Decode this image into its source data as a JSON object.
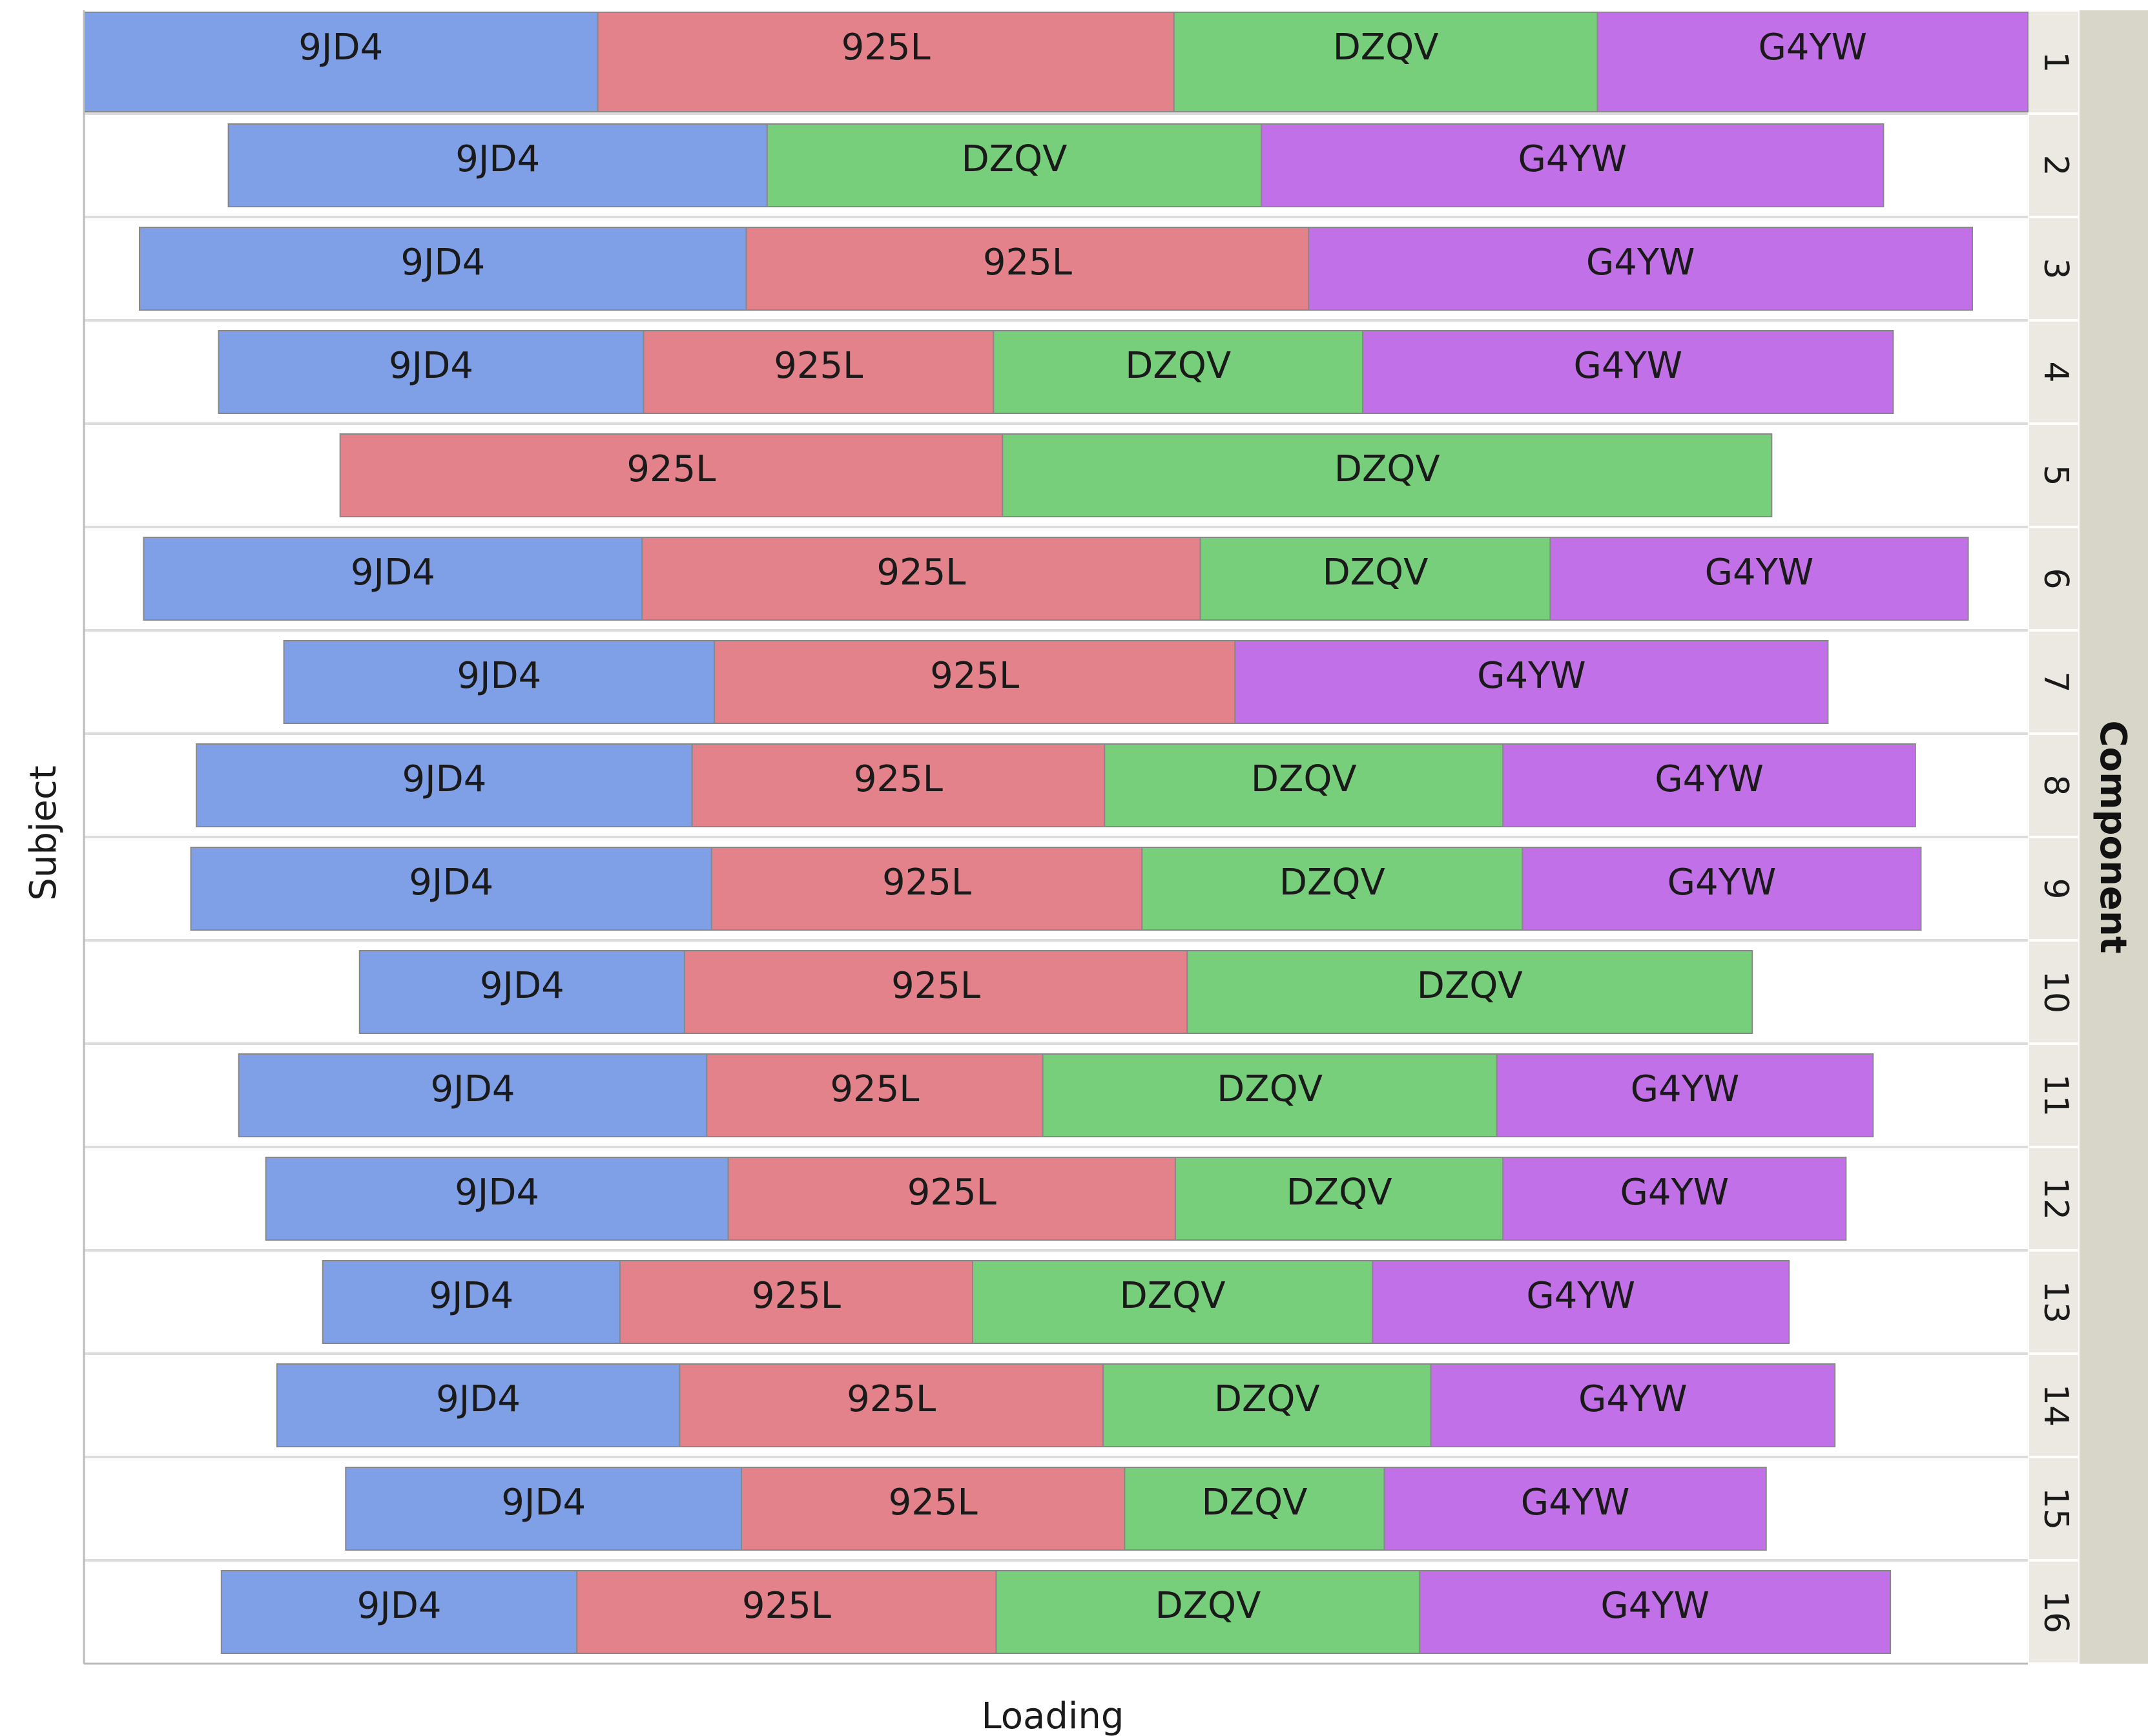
{
  "chart_data": {
    "type": "bar",
    "orientation": "horizontal",
    "stacked": true,
    "centered": true,
    "xlabel": "Loading",
    "ylabel": "Subject",
    "facet_label": "Component",
    "legend": "none",
    "grid": false,
    "colors": {
      "9JD4": "#7f9fe6",
      "925L": "#e3828a",
      "DZQV": "#77cf7b",
      "G4YW": "#c270e8"
    },
    "subjects": [
      {
        "id": "1",
        "segments": [
          {
            "name": "9JD4",
            "value": 370
          },
          {
            "name": "925L",
            "value": 415
          },
          {
            "name": "DZQV",
            "value": 305
          },
          {
            "name": "G4YW",
            "value": 310
          }
        ]
      },
      {
        "id": "2",
        "segments": [
          {
            "name": "9JD4",
            "value": 388
          },
          {
            "name": "DZQV",
            "value": 356
          },
          {
            "name": "G4YW",
            "value": 448
          }
        ]
      },
      {
        "id": "3",
        "segments": [
          {
            "name": "9JD4",
            "value": 437
          },
          {
            "name": "925L",
            "value": 405
          },
          {
            "name": "G4YW",
            "value": 478
          }
        ]
      },
      {
        "id": "4",
        "segments": [
          {
            "name": "9JD4",
            "value": 306
          },
          {
            "name": "925L",
            "value": 252
          },
          {
            "name": "DZQV",
            "value": 266
          },
          {
            "name": "G4YW",
            "value": 382
          }
        ]
      },
      {
        "id": "5",
        "segments": [
          {
            "name": "925L",
            "value": 477
          },
          {
            "name": "DZQV",
            "value": 554
          }
        ]
      },
      {
        "id": "6",
        "segments": [
          {
            "name": "9JD4",
            "value": 359
          },
          {
            "name": "925L",
            "value": 402
          },
          {
            "name": "DZQV",
            "value": 252
          },
          {
            "name": "G4YW",
            "value": 301
          }
        ]
      },
      {
        "id": "7",
        "segments": [
          {
            "name": "9JD4",
            "value": 310
          },
          {
            "name": "925L",
            "value": 375
          },
          {
            "name": "G4YW",
            "value": 427
          }
        ]
      },
      {
        "id": "8",
        "segments": [
          {
            "name": "9JD4",
            "value": 357
          },
          {
            "name": "925L",
            "value": 297
          },
          {
            "name": "DZQV",
            "value": 287
          },
          {
            "name": "G4YW",
            "value": 297
          }
        ]
      },
      {
        "id": "9",
        "segments": [
          {
            "name": "9JD4",
            "value": 375
          },
          {
            "name": "925L",
            "value": 310
          },
          {
            "name": "DZQV",
            "value": 274
          },
          {
            "name": "G4YW",
            "value": 287
          }
        ]
      },
      {
        "id": "10",
        "segments": [
          {
            "name": "9JD4",
            "value": 234
          },
          {
            "name": "925L",
            "value": 362
          },
          {
            "name": "DZQV",
            "value": 407
          }
        ]
      },
      {
        "id": "11",
        "segments": [
          {
            "name": "9JD4",
            "value": 337
          },
          {
            "name": "925L",
            "value": 242
          },
          {
            "name": "DZQV",
            "value": 327
          },
          {
            "name": "G4YW",
            "value": 271
          }
        ]
      },
      {
        "id": "12",
        "segments": [
          {
            "name": "9JD4",
            "value": 333
          },
          {
            "name": "925L",
            "value": 322
          },
          {
            "name": "DZQV",
            "value": 236
          },
          {
            "name": "G4YW",
            "value": 247
          }
        ]
      },
      {
        "id": "13",
        "segments": [
          {
            "name": "9JD4",
            "value": 214
          },
          {
            "name": "925L",
            "value": 254
          },
          {
            "name": "DZQV",
            "value": 288
          },
          {
            "name": "G4YW",
            "value": 300
          }
        ]
      },
      {
        "id": "14",
        "segments": [
          {
            "name": "9JD4",
            "value": 290
          },
          {
            "name": "925L",
            "value": 305
          },
          {
            "name": "DZQV",
            "value": 236
          },
          {
            "name": "G4YW",
            "value": 291
          }
        ]
      },
      {
        "id": "15",
        "segments": [
          {
            "name": "9JD4",
            "value": 285
          },
          {
            "name": "925L",
            "value": 276
          },
          {
            "name": "DZQV",
            "value": 187
          },
          {
            "name": "G4YW",
            "value": 275
          }
        ]
      },
      {
        "id": "16",
        "segments": [
          {
            "name": "9JD4",
            "value": 256
          },
          {
            "name": "925L",
            "value": 302
          },
          {
            "name": "DZQV",
            "value": 305
          },
          {
            "name": "G4YW",
            "value": 339
          }
        ]
      }
    ]
  }
}
